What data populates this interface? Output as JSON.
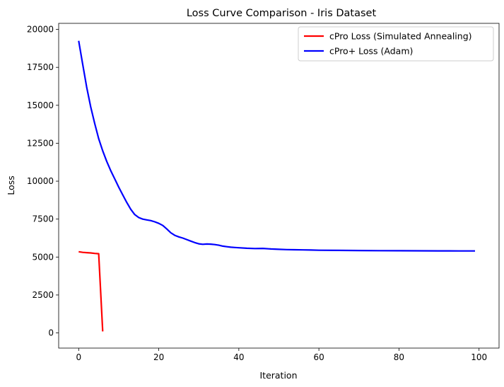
{
  "chart_data": {
    "type": "line",
    "title": "Loss Curve Comparison - Iris Dataset",
    "xlabel": "Iteration",
    "ylabel": "Loss",
    "xlim": [
      -5,
      105
    ],
    "ylim": [
      -1000,
      20400
    ],
    "xticks": [
      0,
      20,
      40,
      60,
      80,
      100
    ],
    "yticks": [
      0,
      2500,
      5000,
      7500,
      10000,
      12500,
      15000,
      17500,
      20000
    ],
    "grid": false,
    "legend_position": "top-right",
    "series": [
      {
        "name": "cPro Loss (Simulated Annealing)",
        "color": "#ff0000",
        "x": [
          0,
          1,
          2,
          3,
          4,
          5,
          6
        ],
        "y": [
          5350,
          5310,
          5290,
          5270,
          5240,
          5220,
          100
        ]
      },
      {
        "name": "cPro+ Loss (Adam)",
        "color": "#0000ff",
        "x": [
          0,
          1,
          2,
          3,
          4,
          5,
          6,
          7,
          8,
          9,
          10,
          11,
          12,
          13,
          14,
          15,
          16,
          17,
          18,
          19,
          20,
          21,
          22,
          23,
          24,
          25,
          26,
          27,
          28,
          29,
          30,
          31,
          32,
          33,
          34,
          35,
          36,
          37,
          38,
          39,
          40,
          42,
          44,
          46,
          48,
          50,
          52,
          54,
          56,
          58,
          60,
          65,
          70,
          75,
          80,
          85,
          90,
          95,
          99
        ],
        "y": [
          19250,
          17700,
          16200,
          14900,
          13800,
          12800,
          12000,
          11300,
          10700,
          10150,
          9600,
          9100,
          8600,
          8150,
          7800,
          7600,
          7500,
          7450,
          7400,
          7320,
          7220,
          7080,
          6850,
          6600,
          6430,
          6330,
          6250,
          6150,
          6050,
          5950,
          5870,
          5840,
          5860,
          5850,
          5820,
          5780,
          5720,
          5680,
          5650,
          5630,
          5610,
          5580,
          5560,
          5570,
          5530,
          5510,
          5490,
          5480,
          5470,
          5460,
          5450,
          5440,
          5430,
          5420,
          5415,
          5410,
          5405,
          5400,
          5400
        ]
      }
    ]
  }
}
